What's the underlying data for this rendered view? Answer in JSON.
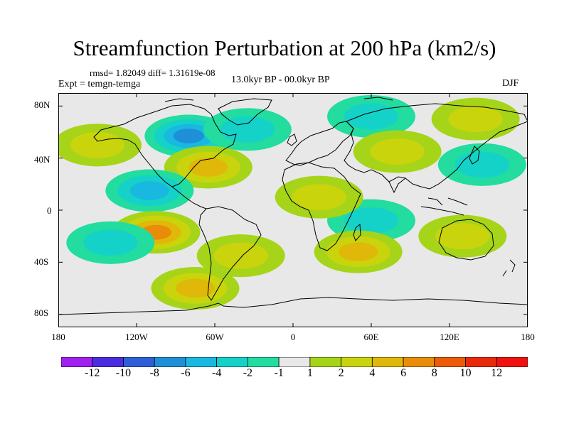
{
  "title": "Streamfunction Perturbation at 200 hPa (km2/s)",
  "stats_line": "rmsd= 1.82049 diff= 1.31619e-08",
  "experiment_label": "Expt = temgn-temga",
  "period_label": "13.0kyr BP - 00.0kyr BP",
  "season_label": "DJF",
  "map": {
    "projection": "cylindrical-equidistant",
    "lon_range": [
      -180,
      180
    ],
    "lat_range": [
      -90,
      90
    ],
    "y_ticks": [
      "80N",
      "40N",
      "0",
      "40S",
      "80S"
    ],
    "x_ticks": [
      "180",
      "120W",
      "60W",
      "0",
      "60E",
      "120E",
      "180"
    ],
    "anomalies": [
      {
        "name": "north-america-low",
        "lon": -80,
        "lat": 57,
        "value": -6
      },
      {
        "name": "north-atlantic-low",
        "lon": -35,
        "lat": 62,
        "value": -3
      },
      {
        "name": "gulf-high",
        "lon": -65,
        "lat": 33,
        "value": 4
      },
      {
        "name": "north-pacific-high",
        "lon": -150,
        "lat": 50,
        "value": 2
      },
      {
        "name": "arctic-east-high",
        "lon": 140,
        "lat": 70,
        "value": 2
      },
      {
        "name": "japan-low",
        "lon": 145,
        "lat": 35,
        "value": -3
      },
      {
        "name": "siberia-low",
        "lon": 60,
        "lat": 72,
        "value": -2
      },
      {
        "name": "asia-high",
        "lon": 80,
        "lat": 45,
        "value": 2
      },
      {
        "name": "tropical-pacific-low",
        "lon": -110,
        "lat": 15,
        "value": -4
      },
      {
        "name": "south-pacific-high",
        "lon": -105,
        "lat": -17,
        "value": 6
      },
      {
        "name": "south-pacific-low",
        "lon": -140,
        "lat": -25,
        "value": -2
      },
      {
        "name": "indian-ocean-low",
        "lon": 60,
        "lat": -8,
        "value": -2
      },
      {
        "name": "australia-high",
        "lon": 130,
        "lat": -20,
        "value": 2
      },
      {
        "name": "south-atlantic-high",
        "lon": -40,
        "lat": -35,
        "value": 2
      },
      {
        "name": "southern-ocean-high",
        "lon": -75,
        "lat": -60,
        "value": 4
      },
      {
        "name": "africa-high",
        "lon": 20,
        "lat": 10,
        "value": 2
      },
      {
        "name": "south-indian-high",
        "lon": 50,
        "lat": -32,
        "value": 4
      }
    ]
  },
  "colorbar": {
    "labels": [
      "-12",
      "-10",
      "-8",
      "-6",
      "-4",
      "-2",
      "-1",
      "1",
      "2",
      "4",
      "6",
      "8",
      "10",
      "12"
    ],
    "colors": [
      "#a020f0",
      "#4b2ce0",
      "#2f5fd8",
      "#1e90d8",
      "#19b8e0",
      "#15d2c8",
      "#22dca0",
      "#e8e8e8",
      "#a6d418",
      "#cad40c",
      "#e0b80a",
      "#e88c0a",
      "#ec5a0a",
      "#e82a0a",
      "#f01010"
    ]
  },
  "colors": {
    "land_outline": "#000000",
    "neutral_fill": "#e8e8e8"
  }
}
